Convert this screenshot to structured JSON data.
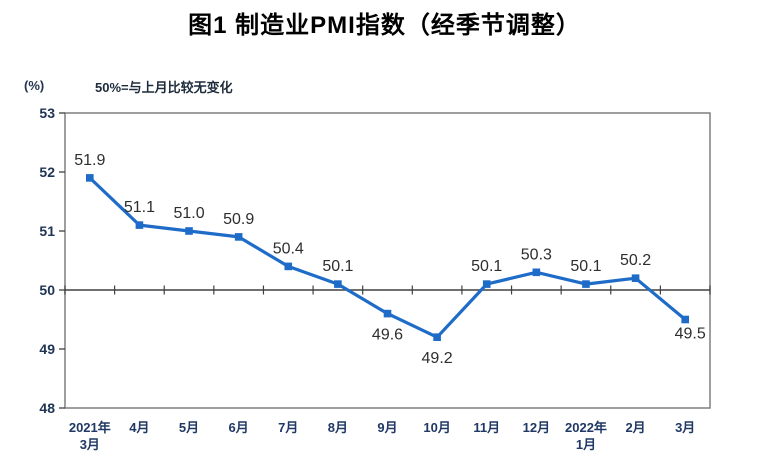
{
  "colors": {
    "line": "#1E6CC8",
    "frame": "#7F7F7F",
    "axis": "#404040",
    "tick_label": "#203864",
    "data_label": "#2E2E2E",
    "title": "#000000"
  },
  "chart_data": {
    "type": "line",
    "title": "图1 制造业PMI指数（经季节调整）",
    "unit_label": "(%)",
    "note": "50%=与上月比较无变化",
    "categories": [
      [
        "2021年",
        "3月"
      ],
      [
        "4月"
      ],
      [
        "5月"
      ],
      [
        "6月"
      ],
      [
        "7月"
      ],
      [
        "8月"
      ],
      [
        "9月"
      ],
      [
        "10月"
      ],
      [
        "11月"
      ],
      [
        "12月"
      ],
      [
        "2022年",
        "1月"
      ],
      [
        "2月"
      ],
      [
        "3月"
      ]
    ],
    "values": [
      51.9,
      51.1,
      51.0,
      50.9,
      50.4,
      50.1,
      49.6,
      49.2,
      50.1,
      50.3,
      50.1,
      50.2,
      49.5
    ],
    "value_labels": [
      "51.9",
      "51.1",
      "51.0",
      "50.9",
      "50.4",
      "50.1",
      "49.6",
      "49.2",
      "50.1",
      "50.3",
      "50.1",
      "50.2",
      "49.5"
    ],
    "label_positions": [
      "above",
      "above",
      "above",
      "above",
      "above",
      "above",
      "below",
      "below",
      "above",
      "above",
      "above",
      "above",
      "below-right"
    ],
    "yticks": [
      53,
      52,
      51,
      50,
      49,
      48
    ],
    "ylim": [
      48,
      53
    ],
    "reference_value": 50,
    "marker": "square",
    "grid": false,
    "legend": "none",
    "xlabel": "",
    "ylabel": "(%)"
  }
}
